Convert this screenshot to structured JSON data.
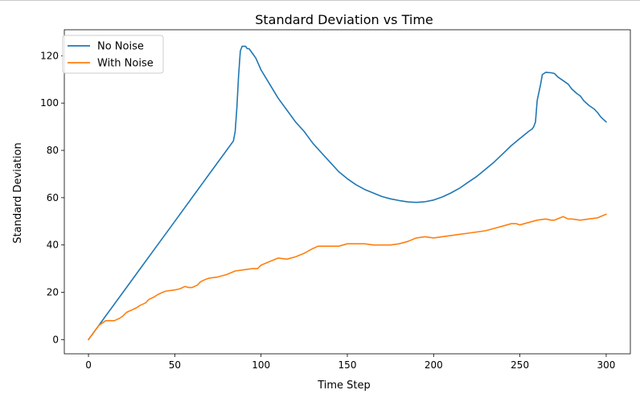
{
  "chart_data": {
    "type": "line",
    "title": "Standard Deviation vs Time",
    "xlabel": "Time Step",
    "ylabel": "Standard Deviation",
    "xlim": [
      -14,
      314
    ],
    "ylim": [
      -6,
      131
    ],
    "xticks": [
      0,
      50,
      100,
      150,
      200,
      250,
      300
    ],
    "yticks": [
      0,
      20,
      40,
      60,
      80,
      100,
      120
    ],
    "grid": false,
    "legend_position": "top-left",
    "series": [
      {
        "name": "No Noise",
        "color": "#1f77b4",
        "x": [
          0,
          5,
          10,
          20,
          30,
          40,
          50,
          60,
          70,
          80,
          84,
          85,
          86,
          87,
          88,
          89,
          90,
          91,
          92,
          93,
          95,
          97,
          100,
          105,
          110,
          115,
          120,
          125,
          130,
          135,
          140,
          145,
          150,
          155,
          160,
          165,
          170,
          175,
          180,
          185,
          190,
          195,
          200,
          205,
          210,
          215,
          220,
          225,
          230,
          235,
          240,
          245,
          250,
          255,
          257,
          258,
          259,
          260,
          262,
          263,
          265,
          268,
          270,
          272,
          275,
          278,
          280,
          283,
          285,
          287,
          290,
          293,
          295,
          297,
          300
        ],
        "y": [
          0,
          5,
          10,
          20,
          30,
          40,
          50,
          60,
          70,
          80,
          84,
          88,
          98,
          112,
          122,
          124,
          124,
          124,
          123,
          123,
          121,
          119,
          114,
          108,
          102,
          97,
          92,
          88,
          83,
          79,
          75,
          71,
          68,
          65.5,
          63.5,
          62,
          60.5,
          59.5,
          58.8,
          58.2,
          58,
          58.3,
          59,
          60.3,
          62,
          64,
          66.5,
          69,
          72,
          75,
          78.5,
          82,
          85,
          88,
          89,
          90,
          92,
          101,
          108,
          112,
          113,
          112.8,
          112.5,
          111,
          109.5,
          108,
          106,
          104,
          103,
          101,
          99,
          97.5,
          96,
          94,
          92
        ]
      },
      {
        "name": "With Noise",
        "color": "#ff7f0e",
        "x": [
          0,
          3,
          6,
          8,
          10,
          12,
          15,
          18,
          20,
          22,
          25,
          28,
          30,
          33,
          35,
          38,
          40,
          43,
          45,
          50,
          53,
          56,
          58,
          60,
          63,
          65,
          68,
          70,
          75,
          80,
          85,
          90,
          95,
          98,
          100,
          105,
          110,
          115,
          120,
          125,
          130,
          133,
          135,
          140,
          145,
          150,
          155,
          160,
          165,
          170,
          175,
          180,
          185,
          190,
          195,
          200,
          205,
          210,
          215,
          220,
          225,
          230,
          235,
          240,
          245,
          248,
          250,
          255,
          260,
          265,
          268,
          270,
          275,
          278,
          280,
          285,
          290,
          295,
          300
        ],
        "y": [
          0,
          3,
          6,
          7,
          8,
          8,
          8,
          9,
          10,
          11.5,
          12.5,
          13.5,
          14.5,
          15.5,
          17,
          18,
          19,
          20,
          20.5,
          21,
          21.5,
          22.5,
          22,
          22,
          23,
          24.5,
          25.5,
          26,
          26.5,
          27.5,
          29,
          29.5,
          30,
          30,
          31.5,
          33,
          34.5,
          34,
          35,
          36.5,
          38.5,
          39.5,
          39.5,
          39.5,
          39.5,
          40.5,
          40.5,
          40.5,
          40,
          40,
          40,
          40.5,
          41.5,
          43,
          43.5,
          43,
          43.5,
          44,
          44.5,
          45,
          45.5,
          46,
          47,
          48,
          49,
          49,
          48.5,
          49.5,
          50.5,
          51,
          50.5,
          50.5,
          52,
          51,
          51,
          50.5,
          51,
          51.5,
          53
        ]
      }
    ]
  }
}
